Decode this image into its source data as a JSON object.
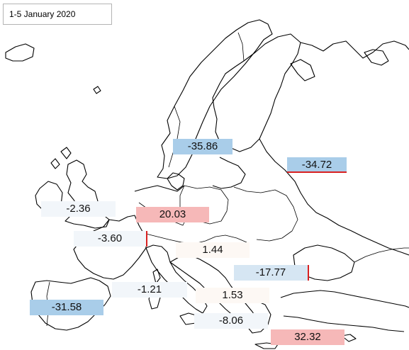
{
  "title": "1-5 January 2020",
  "colors": {
    "decrease_strong": "#a9cde9",
    "decrease_mid": "#d6e6f3",
    "decrease_light": "#f2f6fa",
    "increase_strong": "#f6b8b8",
    "increase_light": "#fdf8f4",
    "marker_red": "#d92020"
  },
  "regions": [
    {
      "id": "fennoscandia",
      "value": "-35.86"
    },
    {
      "id": "russia-west",
      "value": "-34.72"
    },
    {
      "id": "british-isles",
      "value": "-2.36"
    },
    {
      "id": "central-europe-north",
      "value": "20.03"
    },
    {
      "id": "western-europe",
      "value": "-3.60"
    },
    {
      "id": "central-europe-south",
      "value": "1.44"
    },
    {
      "id": "balkans-east",
      "value": "-17.77"
    },
    {
      "id": "western-mediterranean",
      "value": "-1.21"
    },
    {
      "id": "iberia",
      "value": "-31.58"
    },
    {
      "id": "adriatic",
      "value": "1.53"
    },
    {
      "id": "southern-italy",
      "value": "-8.06"
    },
    {
      "id": "eastern-mediterranean",
      "value": "32.32"
    }
  ]
}
